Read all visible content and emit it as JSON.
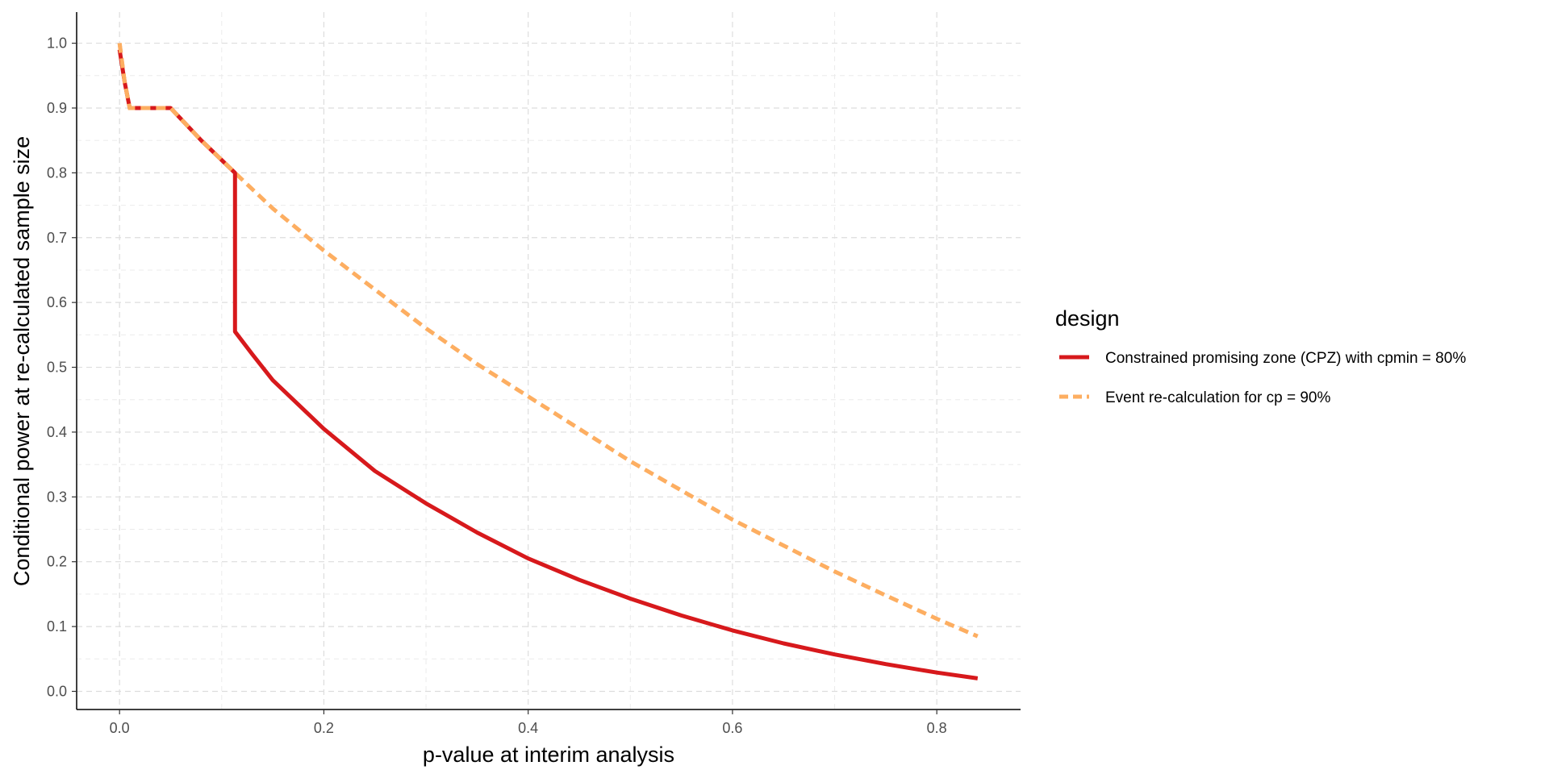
{
  "chart_data": {
    "type": "line",
    "xlabel": "p-value at interim analysis",
    "ylabel": "Conditional power at re-calculated sample size",
    "xlim": [
      -0.042,
      0.882
    ],
    "ylim": [
      -0.028,
      1.048
    ],
    "x_ticks": [
      0.0,
      0.2,
      0.4,
      0.6,
      0.8
    ],
    "x_tick_labels": [
      "0.0",
      "0.2",
      "0.4",
      "0.6",
      "0.8"
    ],
    "y_ticks": [
      0.0,
      0.1,
      0.2,
      0.3,
      0.4,
      0.5,
      0.6,
      0.7,
      0.8,
      0.9,
      1.0
    ],
    "y_tick_labels": [
      "0.0",
      "0.1",
      "0.2",
      "0.3",
      "0.4",
      "0.5",
      "0.6",
      "0.7",
      "0.8",
      "0.9",
      "1.0"
    ],
    "grid": true,
    "legend": {
      "title": "design",
      "position": "right"
    },
    "series": [
      {
        "name": "Constrained promising zone (CPZ) with cpmin = 80%",
        "color": "#d7191c",
        "dash": "solid",
        "x": [
          0.0,
          0.005,
          0.01,
          0.05,
          0.08,
          0.113,
          0.113,
          0.13,
          0.15,
          0.2,
          0.25,
          0.3,
          0.35,
          0.4,
          0.45,
          0.5,
          0.55,
          0.6,
          0.65,
          0.7,
          0.75,
          0.8,
          0.84
        ],
        "y": [
          0.99,
          0.94,
          0.9,
          0.9,
          0.85,
          0.8,
          0.555,
          0.52,
          0.48,
          0.405,
          0.34,
          0.29,
          0.245,
          0.205,
          0.172,
          0.143,
          0.117,
          0.094,
          0.074,
          0.057,
          0.042,
          0.029,
          0.02
        ]
      },
      {
        "name": "Event re-calculation for cp = 90%",
        "color": "#fdae61",
        "dash": "dashed",
        "x": [
          0.0,
          0.005,
          0.01,
          0.05,
          0.08,
          0.113,
          0.15,
          0.2,
          0.25,
          0.3,
          0.35,
          0.4,
          0.45,
          0.5,
          0.55,
          0.6,
          0.65,
          0.7,
          0.75,
          0.8,
          0.84
        ],
        "y": [
          1.0,
          0.94,
          0.9,
          0.9,
          0.85,
          0.8,
          0.745,
          0.68,
          0.62,
          0.56,
          0.505,
          0.455,
          0.405,
          0.355,
          0.31,
          0.265,
          0.225,
          0.185,
          0.148,
          0.112,
          0.085
        ]
      }
    ]
  }
}
